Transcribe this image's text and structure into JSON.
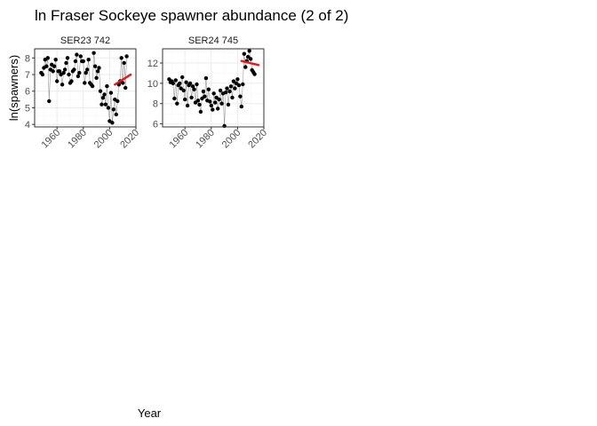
{
  "title": "ln Fraser Sockeye spawner abundance (2 of 2)",
  "xlabel": "Year",
  "ylabel": "ln(spawners)",
  "colors": {
    "points": "#000000",
    "line": "#999999",
    "trend": "#e41a1c",
    "grid": "#ebebeb",
    "border": "#333333"
  },
  "chart_data": [
    {
      "type": "scatter",
      "panel": "SER23 742",
      "xlim": [
        1943,
        2020
      ],
      "ylim": [
        3.85,
        8.55
      ],
      "xticks": [
        1960,
        1980,
        2000,
        2020
      ],
      "yticks": [
        4,
        5,
        6,
        7,
        8
      ],
      "grid": true,
      "x": [
        1948,
        1949,
        1950,
        1951,
        1952,
        1953,
        1954,
        1955,
        1956,
        1957,
        1958,
        1959,
        1960,
        1961,
        1962,
        1963,
        1964,
        1965,
        1966,
        1967,
        1968,
        1969,
        1970,
        1971,
        1972,
        1973,
        1974,
        1975,
        1976,
        1977,
        1978,
        1979,
        1980,
        1981,
        1982,
        1983,
        1984,
        1985,
        1986,
        1987,
        1988,
        1989,
        1990,
        1991,
        1992,
        1993,
        1994,
        1995,
        1996,
        1997,
        1998,
        1999,
        2000,
        2001,
        2002,
        2003,
        2004,
        2005,
        2006,
        2007,
        2008,
        2009,
        2010,
        2011,
        2012,
        2013
      ],
      "y": [
        7.1,
        7.0,
        7.4,
        7.9,
        7.5,
        8.0,
        5.4,
        7.3,
        7.6,
        7.2,
        7.5,
        7.9,
        6.6,
        7.2,
        7.2,
        7.0,
        6.4,
        7.1,
        7.3,
        7.7,
        8.0,
        7.0,
        6.5,
        6.6,
        7.2,
        7.3,
        7.8,
        8.2,
        6.9,
        7.1,
        8.1,
        7.8,
        7.8,
        6.5,
        7.1,
        7.3,
        7.9,
        6.5,
        6.4,
        6.3,
        8.3,
        7.5,
        6.8,
        7.2,
        7.4,
        6.0,
        5.2,
        5.6,
        5.8,
        5.2,
        6.3,
        5.0,
        4.2,
        5.9,
        4.1,
        4.9,
        5.5,
        4.6,
        5.4,
        6.4,
        6.6,
        8.0,
        6.5,
        7.7,
        6.2,
        8.1
      ],
      "trend": {
        "x": [
          2004,
          2016
        ],
        "y": [
          6.4,
          7.0
        ]
      }
    },
    {
      "type": "scatter",
      "panel": "SER24 745",
      "xlim": [
        1943,
        2020
      ],
      "ylim": [
        5.7,
        13.4
      ],
      "xticks": [
        1960,
        1980,
        2000,
        2020
      ],
      "yticks": [
        6,
        8,
        10,
        12
      ],
      "grid": true,
      "x": [
        1948,
        1949,
        1950,
        1951,
        1952,
        1953,
        1954,
        1955,
        1956,
        1957,
        1958,
        1959,
        1960,
        1961,
        1962,
        1963,
        1964,
        1965,
        1966,
        1967,
        1968,
        1969,
        1970,
        1971,
        1972,
        1973,
        1974,
        1975,
        1976,
        1977,
        1978,
        1979,
        1980,
        1981,
        1982,
        1983,
        1984,
        1985,
        1986,
        1987,
        1988,
        1989,
        1990,
        1991,
        1992,
        1993,
        1994,
        1995,
        1996,
        1997,
        1998,
        1999,
        2000,
        2001,
        2002,
        2003,
        2004,
        2005,
        2006,
        2007,
        2008,
        2009,
        2010,
        2011,
        2012,
        2013
      ],
      "y": [
        10.4,
        10.1,
        10.2,
        10.0,
        8.5,
        10.3,
        8.0,
        9.8,
        10.0,
        9.5,
        10.6,
        9.3,
        8.4,
        10.1,
        7.8,
        9.8,
        10.0,
        8.6,
        9.7,
        9.4,
        8.1,
        9.9,
        8.3,
        7.9,
        7.2,
        8.5,
        9.2,
        8.7,
        10.5,
        8.3,
        9.4,
        8.2,
        7.8,
        7.4,
        9.0,
        8.1,
        8.6,
        7.5,
        8.4,
        9.3,
        8.0,
        9.0,
        5.8,
        9.1,
        9.5,
        7.9,
        9.2,
        9.7,
        8.6,
        10.2,
        9.5,
        10.0,
        10.4,
        9.8,
        8.7,
        7.7,
        9.9,
        12.9,
        11.6,
        12.2,
        12.6,
        13.2,
        12.4,
        11.3,
        11.1,
        10.9
      ],
      "trend": {
        "x": [
          2003,
          2016
        ],
        "y": [
          12.2,
          11.8
        ]
      }
    }
  ]
}
